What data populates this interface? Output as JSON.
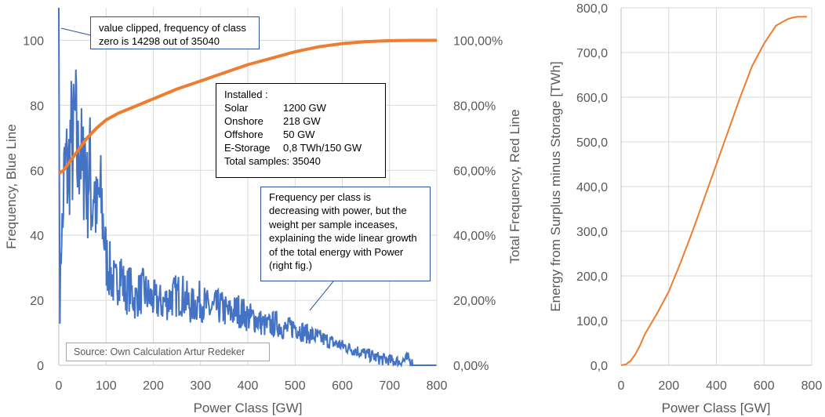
{
  "chart_data": [
    {
      "type": "line",
      "title": "",
      "xlabel": "Power Class [GW]",
      "ylabel": "Frequency, Blue Line",
      "y2label": "Total Frequency, Red Line",
      "xlim": [
        0,
        800
      ],
      "ylim": [
        0,
        110
      ],
      "y2lim": [
        0,
        1.1
      ],
      "x_ticks": [
        "0",
        "100",
        "200",
        "300",
        "400",
        "500",
        "600",
        "700",
        "800"
      ],
      "y_ticks": [
        "0",
        "20",
        "40",
        "60",
        "80",
        "100"
      ],
      "y2_ticks": [
        "0,00%",
        "20,00%",
        "40,00%",
        "60,00%",
        "80,00%",
        "100,00%"
      ],
      "series": [
        {
          "name": "Frequency",
          "axis": "left",
          "color": "#4472c4",
          "note": "value at class 0 clipped (14298)",
          "x": [
            0,
            2,
            4,
            6,
            8,
            10,
            15,
            20,
            25,
            30,
            35,
            40,
            45,
            50,
            55,
            60,
            65,
            70,
            75,
            80,
            85,
            90,
            95,
            100,
            110,
            120,
            130,
            140,
            150,
            160,
            170,
            180,
            190,
            200,
            220,
            240,
            260,
            280,
            300,
            320,
            340,
            360,
            380,
            400,
            420,
            440,
            460,
            480,
            500,
            520,
            540,
            560,
            580,
            600,
            620,
            640,
            660,
            680,
            700,
            720,
            740,
            750,
            760,
            780,
            800
          ],
          "values": [
            110,
            16,
            30,
            45,
            38,
            55,
            62,
            58,
            70,
            66,
            75,
            60,
            72,
            55,
            68,
            52,
            63,
            48,
            57,
            44,
            52,
            50,
            42,
            33,
            28,
            24,
            30,
            22,
            24,
            20,
            22,
            23,
            21,
            20,
            19,
            21,
            22,
            18,
            20,
            17,
            18,
            16,
            17,
            15,
            14,
            12,
            13,
            11,
            12,
            10,
            9,
            8,
            7,
            6,
            5,
            4,
            3,
            2,
            1.5,
            1,
            2,
            0,
            0,
            0,
            0
          ]
        },
        {
          "name": "Total Frequency",
          "axis": "right",
          "color": "#ed7d31",
          "x": [
            0,
            10,
            20,
            40,
            60,
            80,
            100,
            125,
            150,
            200,
            250,
            300,
            350,
            400,
            450,
            500,
            550,
            600,
            650,
            700,
            750,
            800
          ],
          "values": [
            0.59,
            0.6,
            0.62,
            0.66,
            0.7,
            0.73,
            0.755,
            0.775,
            0.79,
            0.82,
            0.85,
            0.875,
            0.9,
            0.925,
            0.945,
            0.965,
            0.98,
            0.99,
            0.996,
            0.999,
            1.0,
            1.0
          ]
        }
      ]
    },
    {
      "type": "line",
      "title": "",
      "xlabel": "Power Class [GW]",
      "ylabel": "Energy from Surplus minus Storage [TWh]",
      "xlim": [
        0,
        800
      ],
      "ylim": [
        0,
        800
      ],
      "x_ticks": [
        "0",
        "200",
        "400",
        "600",
        "800"
      ],
      "y_ticks": [
        "0,0",
        "100,0",
        "200,0",
        "300,0",
        "400,0",
        "500,0",
        "600,0",
        "700,0",
        "800,0"
      ],
      "series": [
        {
          "name": "Energy",
          "color": "#ed7d31",
          "x": [
            0,
            20,
            40,
            60,
            80,
            100,
            150,
            200,
            250,
            300,
            350,
            400,
            450,
            500,
            550,
            600,
            650,
            700,
            720,
            740,
            760,
            780
          ],
          "values": [
            0,
            2,
            10,
            25,
            45,
            70,
            115,
            165,
            230,
            300,
            375,
            450,
            525,
            600,
            670,
            720,
            760,
            775,
            778,
            780,
            780,
            780
          ]
        }
      ]
    }
  ],
  "annotations": {
    "clip_note": "value clipped, frequency of class zero is 14298 out of 35040",
    "installed_title": "Installed :",
    "installed": [
      {
        "name": "Solar",
        "value": "1200 GW"
      },
      {
        "name": "Onshore",
        "value": "218 GW"
      },
      {
        "name": "Offshore",
        "value": "50 GW"
      },
      {
        "name": "E-Storage",
        "value": "0,8 TWh/150 GW"
      }
    ],
    "total_samples": "Total samples: 35040",
    "freq_note": "Frequency per class is decreasing with power, but the weight per sample inceases, explaining the wide linear growth of the total energy with Power (right fig.)",
    "source": "Source: Own Calculation Artur Redeker"
  }
}
